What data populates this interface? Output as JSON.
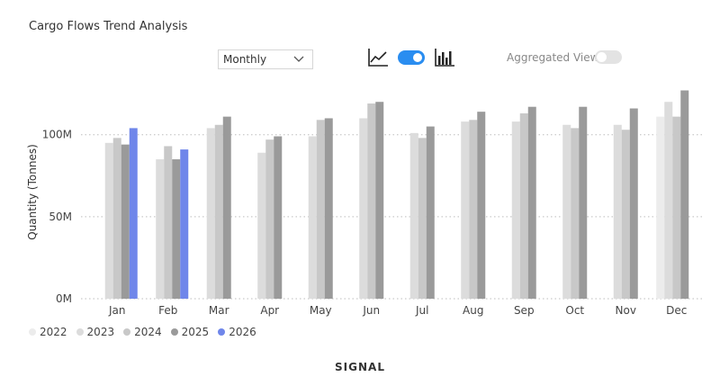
{
  "header": {
    "title": "Cargo Flows Trend Analysis",
    "period_select": "Monthly",
    "aggregated_label": "Aggregated View",
    "brand": "SIGNAL"
  },
  "colors": {
    "2022": "#ececec",
    "2023": "#dcdcdc",
    "2024": "#c8c8c8",
    "2025": "#9a9a9a",
    "2026": "#6f86ea",
    "toggle_on": "#2a8df0"
  },
  "chart_data": {
    "type": "bar",
    "title": "Cargo Flows Trend Analysis",
    "ylabel": "Quantity (Tonnes)",
    "xlabel": "",
    "ylim": [
      0,
      130000000
    ],
    "yticks": [
      {
        "value": 0,
        "label": "0M"
      },
      {
        "value": 50000000,
        "label": "50M"
      },
      {
        "value": 100000000,
        "label": "100M"
      }
    ],
    "categories": [
      "Jan",
      "Feb",
      "Mar",
      "Apr",
      "May",
      "Jun",
      "Jul",
      "Aug",
      "Sep",
      "Oct",
      "Nov",
      "Dec"
    ],
    "series": [
      {
        "name": "2022",
        "values": [
          null,
          null,
          null,
          null,
          null,
          null,
          null,
          null,
          null,
          null,
          null,
          111000000
        ]
      },
      {
        "name": "2023",
        "values": [
          95000000,
          85000000,
          104000000,
          89000000,
          99000000,
          110000000,
          101000000,
          108000000,
          108000000,
          106000000,
          106000000,
          120000000
        ]
      },
      {
        "name": "2024",
        "values": [
          98000000,
          93000000,
          106000000,
          97000000,
          109000000,
          119000000,
          98000000,
          109000000,
          113000000,
          104000000,
          103000000,
          111000000
        ]
      },
      {
        "name": "2025",
        "values": [
          94000000,
          85000000,
          111000000,
          99000000,
          110000000,
          120000000,
          105000000,
          114000000,
          117000000,
          117000000,
          116000000,
          127000000
        ]
      },
      {
        "name": "2026",
        "values": [
          104000000,
          91000000,
          null,
          null,
          null,
          null,
          null,
          null,
          null,
          null,
          null,
          null
        ]
      }
    ],
    "grid": true,
    "legend": "bottom-left"
  }
}
